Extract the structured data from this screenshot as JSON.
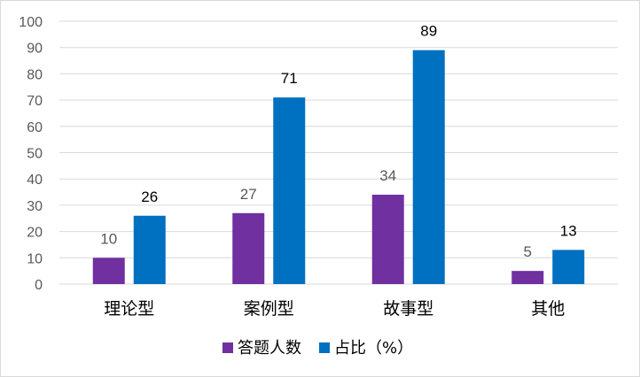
{
  "chart_data": {
    "type": "bar",
    "categories": [
      "理论型",
      "案例型",
      "故事型",
      "其他"
    ],
    "series": [
      {
        "name": "答题人数",
        "values": [
          10,
          27,
          34,
          5
        ],
        "color": "#7030a0"
      },
      {
        "name": "占比（%）",
        "values": [
          26,
          71,
          89,
          13
        ],
        "color": "#0070c0"
      }
    ],
    "yticks": [
      "0",
      "10",
      "20",
      "30",
      "40",
      "50",
      "60",
      "70",
      "80",
      "90",
      "100"
    ],
    "ylim": [
      0,
      100
    ],
    "grid": true,
    "legend_position": "bottom",
    "gridline_color": "#d9d9d9",
    "label_colors": [
      "#595959",
      "#000000"
    ]
  }
}
